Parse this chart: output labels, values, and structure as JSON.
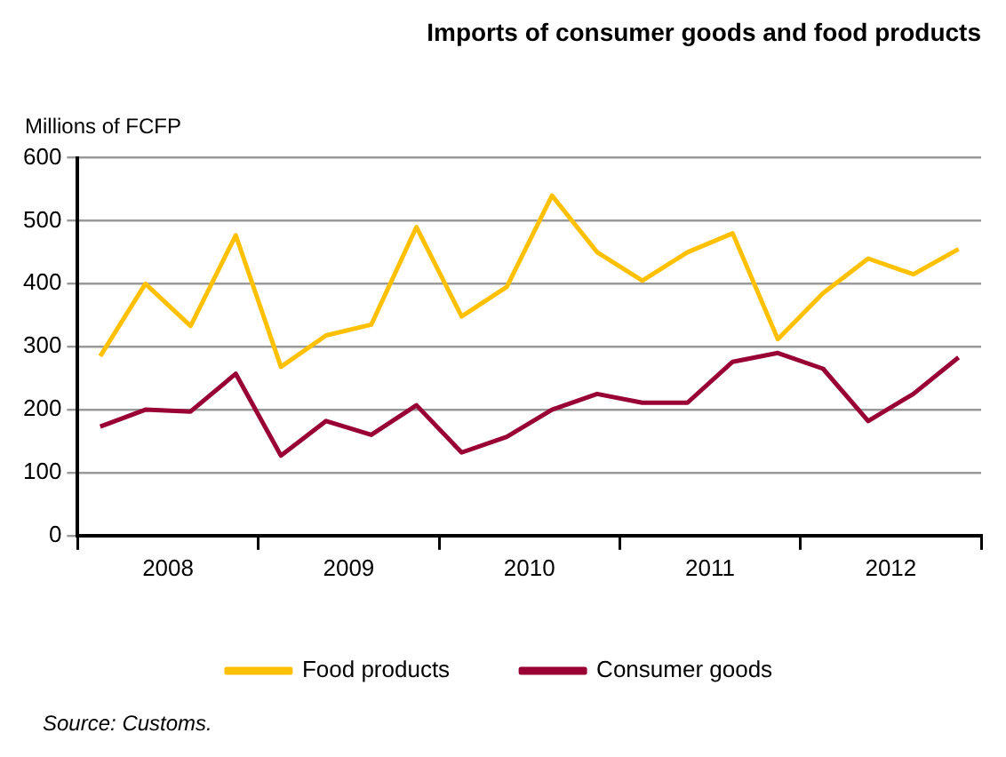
{
  "chart_data": {
    "type": "line",
    "title": "Imports of consumer goods and food products",
    "ylabel": "Millions of FCFP",
    "x": [
      2008.125,
      2008.375,
      2008.625,
      2008.875,
      2009.125,
      2009.375,
      2009.625,
      2009.875,
      2010.125,
      2010.375,
      2010.625,
      2010.875,
      2011.125,
      2011.375,
      2011.625,
      2011.875,
      2012.125,
      2012.375,
      2012.625,
      2012.875
    ],
    "series": [
      {
        "name": "Food products",
        "color": "#ffc000",
        "values": [
          285,
          400,
          333,
          477,
          268,
          318,
          335,
          490,
          348,
          395,
          540,
          450,
          405,
          450,
          480,
          312,
          385,
          440,
          415,
          455
        ]
      },
      {
        "name": "Consumer goods",
        "color": "#990033",
        "values": [
          173,
          200,
          197,
          257,
          127,
          182,
          160,
          207,
          132,
          157,
          200,
          225,
          211,
          211,
          276,
          290,
          265,
          182,
          225,
          283
        ]
      }
    ],
    "xlim": [
      2008,
      2013
    ],
    "xticks": [
      {
        "value": 2008,
        "label": null
      },
      {
        "value": 2008.5,
        "label": "2008"
      },
      {
        "value": 2009,
        "label": null
      },
      {
        "value": 2009.5,
        "label": "2009"
      },
      {
        "value": 2010,
        "label": null
      },
      {
        "value": 2010.5,
        "label": "2010"
      },
      {
        "value": 2011,
        "label": null
      },
      {
        "value": 2011.5,
        "label": "2011"
      },
      {
        "value": 2012,
        "label": null
      },
      {
        "value": 2012.5,
        "label": "2012"
      },
      {
        "value": 2013,
        "label": null
      }
    ],
    "ylim": [
      0,
      600
    ],
    "yticks": [
      0,
      100,
      200,
      300,
      400,
      500,
      600
    ],
    "grid": "y",
    "legend": "bottom",
    "marker": "none",
    "line_style": "solid",
    "annotations": [
      "Source: Customs."
    ]
  }
}
